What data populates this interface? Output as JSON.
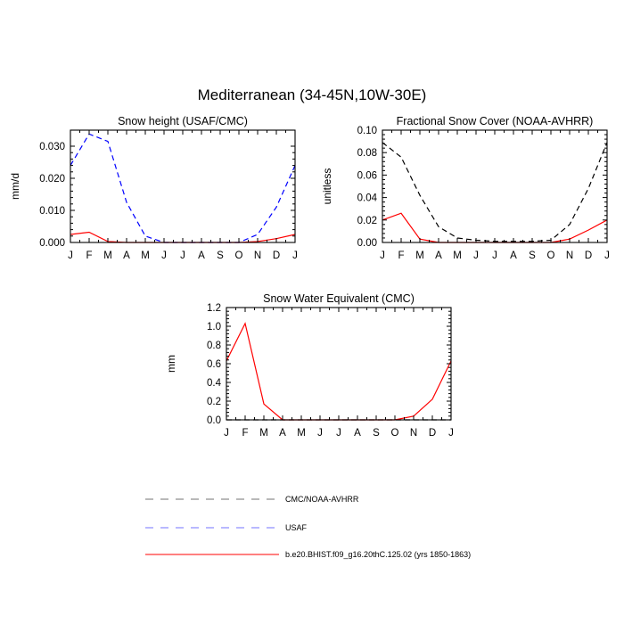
{
  "figure": {
    "title": "Mediterranean (34-45N,10W-30E)"
  },
  "legend": {
    "entries": [
      {
        "label": "CMC/NOAA-AVHRR",
        "color": "#000000",
        "dash": "dashed"
      },
      {
        "label": "USAF",
        "color": "#0000ff",
        "dash": "dashed"
      },
      {
        "label": "b.e20.BHIST.f09_g16.20thC.125.02 (yrs 1850-1863)",
        "color": "#ff0000",
        "dash": "solid"
      }
    ]
  },
  "chart_data": [
    {
      "type": "line",
      "title": "Snow height (USAF/CMC)",
      "ylabel": "mm/d",
      "xlabel": "",
      "categories": [
        "J",
        "F",
        "M",
        "A",
        "M",
        "J",
        "J",
        "A",
        "S",
        "O",
        "N",
        "D",
        "J"
      ],
      "ylim": [
        0,
        0.035
      ],
      "yticks": [
        0,
        0.01,
        0.02,
        0.03
      ],
      "ytick_labels": [
        "0.000",
        "0.010",
        "0.020",
        "0.030"
      ],
      "series": [
        {
          "name": "USAF",
          "color": "#0000ff",
          "dash": "dashed",
          "values": [
            0.024,
            0.0338,
            0.0315,
            0.0125,
            0.002,
            0.0,
            0.0,
            0.0,
            0.0,
            0.0,
            0.0025,
            0.011,
            0.024
          ]
        },
        {
          "name": "b.e20.BHIST.f09_g16.20thC.125.02 (yrs 1850-1863)",
          "color": "#ff0000",
          "dash": "solid",
          "values": [
            0.0025,
            0.0032,
            0.0003,
            0.0,
            0.0,
            0.0,
            0.0,
            0.0,
            0.0,
            0.0,
            0.0003,
            0.0012,
            0.0025
          ]
        }
      ]
    },
    {
      "type": "line",
      "title": "Fractional Snow Cover (NOAA-AVHRR)",
      "ylabel": "unitless",
      "xlabel": "",
      "categories": [
        "J",
        "F",
        "M",
        "A",
        "M",
        "J",
        "J",
        "A",
        "S",
        "O",
        "N",
        "D",
        "J"
      ],
      "ylim": [
        0,
        0.1
      ],
      "yticks": [
        0,
        0.02,
        0.04,
        0.06,
        0.08,
        0.1
      ],
      "ytick_labels": [
        "0.00",
        "0.02",
        "0.04",
        "0.06",
        "0.08",
        "0.10"
      ],
      "series": [
        {
          "name": "CMC/NOAA-AVHRR",
          "color": "#000000",
          "dash": "dashed",
          "values": [
            0.089,
            0.076,
            0.042,
            0.014,
            0.004,
            0.002,
            0.001,
            0.001,
            0.001,
            0.002,
            0.016,
            0.048,
            0.089
          ]
        },
        {
          "name": "b.e20.BHIST.f09_g16.20thC.125.02 (yrs 1850-1863)",
          "color": "#ff0000",
          "dash": "solid",
          "values": [
            0.02,
            0.026,
            0.003,
            0.0,
            0.0,
            0.0,
            0.0,
            0.0,
            0.0,
            0.0,
            0.003,
            0.011,
            0.02
          ]
        }
      ]
    },
    {
      "type": "line",
      "title": "Snow Water Equivalent (CMC)",
      "ylabel": "mm",
      "xlabel": "",
      "categories": [
        "J",
        "F",
        "M",
        "A",
        "M",
        "J",
        "J",
        "A",
        "S",
        "O",
        "N",
        "D",
        "J"
      ],
      "ylim": [
        0,
        1.2
      ],
      "yticks": [
        0,
        0.2,
        0.4,
        0.6,
        0.8,
        1.0,
        1.2
      ],
      "ytick_labels": [
        "0.0",
        "0.2",
        "0.4",
        "0.6",
        "0.8",
        "1.0",
        "1.2"
      ],
      "series": [
        {
          "name": "CMC/NOAA-AVHRR",
          "color": "#000000",
          "dash": "dashed",
          "values": [
            0,
            0,
            0,
            0,
            0,
            0,
            0,
            0,
            0,
            0,
            0,
            0,
            0
          ]
        },
        {
          "name": "b.e20.BHIST.f09_g16.20thC.125.02 (yrs 1850-1863)",
          "color": "#ff0000",
          "dash": "solid",
          "values": [
            0.63,
            1.03,
            0.17,
            0.0,
            0.0,
            0.0,
            0.0,
            0.0,
            0.0,
            0.0,
            0.04,
            0.22,
            0.63
          ]
        }
      ]
    }
  ]
}
